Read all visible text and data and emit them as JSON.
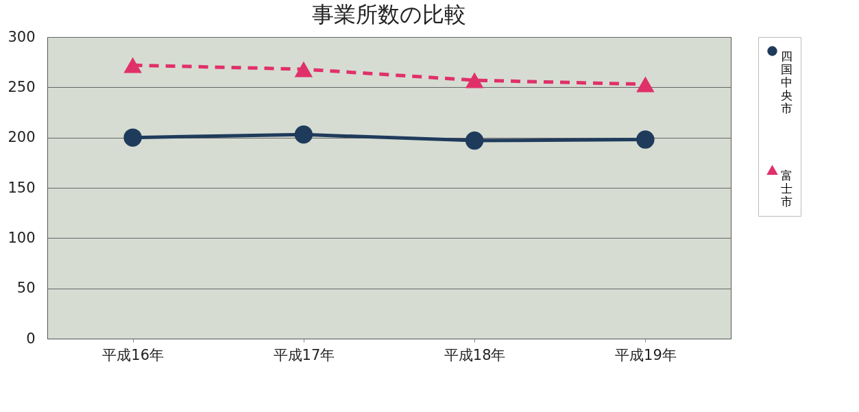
{
  "chart_data": {
    "type": "line",
    "title": "事業所数の比較",
    "categories": [
      "平成16年",
      "平成17年",
      "平成18年",
      "平成19年"
    ],
    "series": [
      {
        "name": "四国中央市",
        "color": "#1f3b5c",
        "values": [
          200,
          203,
          197,
          198
        ],
        "marker": "circle",
        "line_style": "solid"
      },
      {
        "name": "富士市",
        "color": "#e0306a",
        "values": [
          272,
          268,
          257,
          253
        ],
        "marker": "triangle",
        "line_style": "dashed"
      }
    ],
    "ylim": [
      0,
      300
    ],
    "yticks": [
      0,
      50,
      100,
      150,
      200,
      250,
      300
    ],
    "grid": "y",
    "legend": "right"
  }
}
